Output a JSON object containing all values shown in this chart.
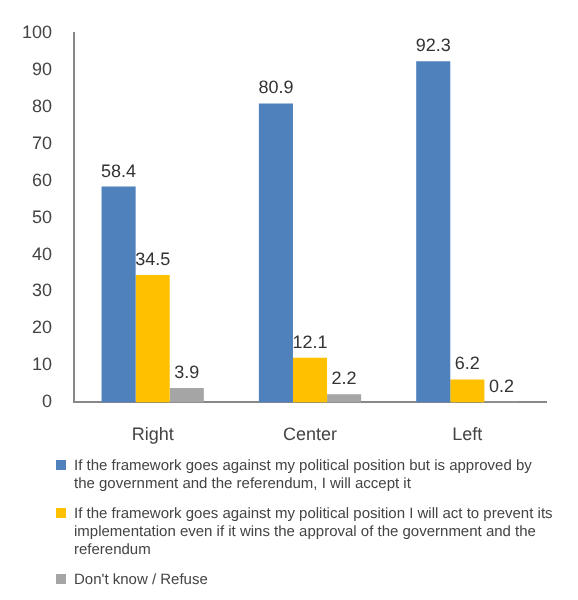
{
  "chart_data": {
    "type": "bar",
    "categories": [
      "Right",
      "Center",
      "Left"
    ],
    "series": [
      {
        "name": "If the framework goes against my political position but is approved by the government and the referendum, I will accept it",
        "color": "#4f81bd",
        "values": [
          58.4,
          80.9,
          92.3
        ]
      },
      {
        "name": "If the framework goes against my political position I will act to prevent its implementation even if it wins the approval of the government and the referendum",
        "color": "#ffc000",
        "values": [
          34.5,
          12.1,
          6.2
        ]
      },
      {
        "name": "Don't know / Refuse",
        "color": "#a5a5a5",
        "values": [
          3.9,
          2.2,
          0.2
        ]
      }
    ],
    "ylim": [
      0,
      100
    ],
    "yticks": [
      0,
      10,
      20,
      30,
      40,
      50,
      60,
      70,
      80,
      90,
      100
    ],
    "grid": false,
    "legend": "bottom",
    "data_labels": true
  }
}
